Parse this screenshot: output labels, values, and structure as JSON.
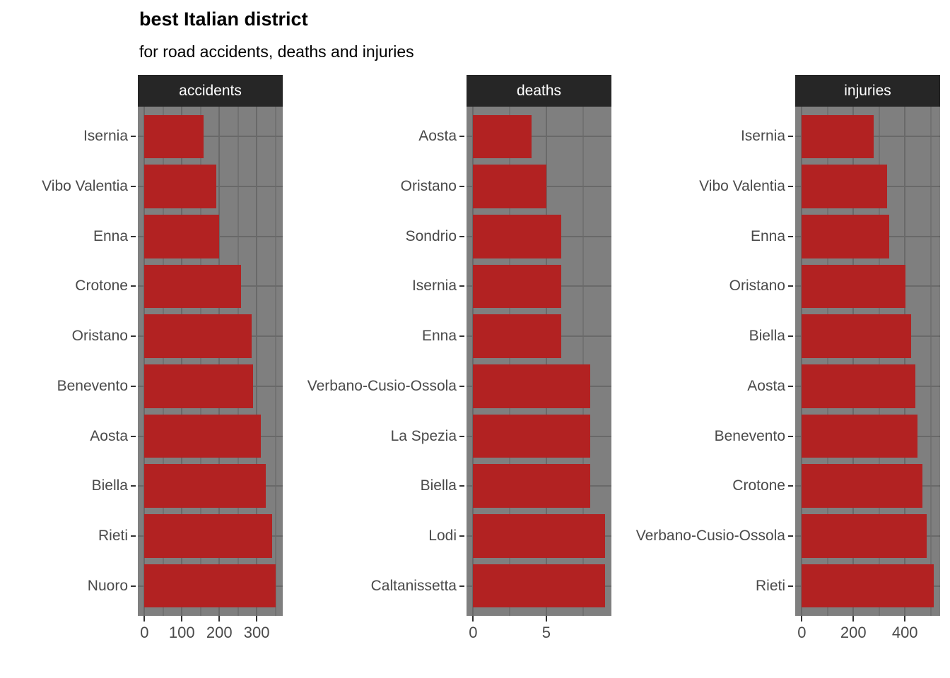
{
  "title": "best Italian district",
  "subtitle": "for road accidents, deaths and injuries",
  "colors": {
    "bar": "#b22222",
    "panel_bg": "#7f7f7f",
    "strip_bg": "#262626",
    "strip_text": "#ffffff",
    "grid_major": "#696969",
    "grid_minor": "#717171",
    "axis_text": "#4a4a4a",
    "tick": "#333333",
    "title_text": "#000000"
  },
  "chart_data": {
    "type": "bar",
    "orientation": "horizontal",
    "title": "best Italian district",
    "subtitle": "for road accidents, deaths and injuries",
    "grid": true,
    "legend": "none",
    "facets": [
      {
        "title": "accidents",
        "categories": [
          "Isernia",
          "Vibo Valentia",
          "Enna",
          "Crotone",
          "Oristano",
          "Benevento",
          "Aosta",
          "Biella",
          "Rieti",
          "Nuoro"
        ],
        "values": [
          158,
          193,
          200,
          259,
          287,
          291,
          311,
          325,
          342,
          351
        ],
        "xlim": [
          -17.6,
          369.6
        ],
        "x_major_ticks": [
          0,
          100,
          200,
          300
        ],
        "x_minor_ticks": [
          50,
          150,
          250,
          350
        ]
      },
      {
        "title": "deaths",
        "categories": [
          "Aosta",
          "Oristano",
          "Sondrio",
          "Isernia",
          "Enna",
          "Verbano-Cusio-Ossola",
          "La Spezia",
          "Biella",
          "Lodi",
          "Caltanissetta"
        ],
        "values": [
          4,
          5,
          6,
          6,
          6,
          8,
          8,
          8,
          9,
          9
        ],
        "xlim": [
          -0.45,
          9.45
        ],
        "x_major_ticks": [
          0,
          5
        ],
        "x_minor_ticks": [
          2.5,
          7.5
        ]
      },
      {
        "title": "injuries",
        "categories": [
          "Isernia",
          "Vibo Valentia",
          "Enna",
          "Oristano",
          "Biella",
          "Aosta",
          "Benevento",
          "Crotone",
          "Verbano-Cusio-Ossola",
          "Rieti"
        ],
        "values": [
          278,
          330,
          340,
          403,
          425,
          440,
          450,
          467,
          485,
          511
        ],
        "xlim": [
          -25.6,
          536.6
        ],
        "x_major_ticks": [
          0,
          200,
          400
        ],
        "x_minor_ticks": [
          100,
          300,
          500
        ]
      }
    ]
  }
}
